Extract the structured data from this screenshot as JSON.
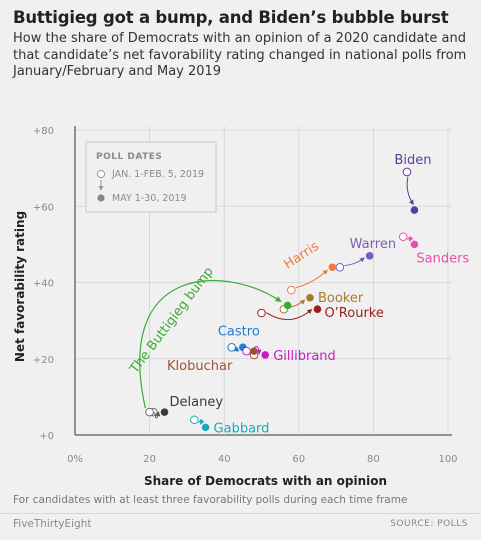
{
  "header": {
    "title": "Buttigieg got a bump, and Biden’s bubble burst",
    "subtitle": "How the share of Democrats with an opinion of a 2020 candidate and that candidate’s net favorability rating changed in national polls from January/February and May 2019"
  },
  "footer": {
    "note": "For candidates with at least three favorability polls during each time frame",
    "brand": "FiveThirtyEight",
    "source": "SOURCE: POLLS"
  },
  "chart_data": {
    "type": "scatter",
    "xlabel": "Share of Democrats with an opinion",
    "ylabel": "Net favorability rating",
    "xlim": [
      0,
      100
    ],
    "ylim": [
      0,
      80
    ],
    "x_ticks": [
      0,
      20,
      40,
      60,
      80,
      100
    ],
    "x_tick_labels": [
      "0%",
      "20",
      "40",
      "60",
      "80",
      "100"
    ],
    "y_ticks": [
      0,
      20,
      40,
      60,
      80
    ],
    "y_tick_labels": [
      "+0",
      "+20",
      "+40",
      "+60",
      "+80"
    ],
    "grid": true,
    "legend": {
      "title": "POLL DATES",
      "from_label": "JAN. 1-FEB. 5, 2019",
      "to_label": "MAY 1-30, 2019",
      "placement": "top-left"
    },
    "annotation": "The Buttigieg bump",
    "series": [
      {
        "name": "Biden",
        "color": "#5c3d9a",
        "from": [
          89,
          69
        ],
        "to": [
          91,
          59
        ]
      },
      {
        "name": "Sanders",
        "color": "#e84fb0",
        "from": [
          88,
          52
        ],
        "to": [
          91,
          50
        ]
      },
      {
        "name": "Warren",
        "color": "#7b5cb8",
        "from": [
          71,
          44
        ],
        "to": [
          79,
          47
        ]
      },
      {
        "name": "Harris",
        "color": "#f07a3a",
        "from": [
          58,
          38
        ],
        "to": [
          69,
          44
        ]
      },
      {
        "name": "Booker",
        "color": "#a87a30",
        "from": [
          56,
          33
        ],
        "to": [
          63,
          36
        ]
      },
      {
        "name": "O’Rourke",
        "color": "#9c1c1c",
        "from": [
          50,
          32
        ],
        "to": [
          65,
          33
        ]
      },
      {
        "name": "Buttigieg",
        "color": "#3aaa35",
        "from": [
          21,
          6
        ],
        "to": [
          57,
          34
        ]
      },
      {
        "name": "Castro",
        "color": "#1b7fd3",
        "from": [
          42,
          23
        ],
        "to": [
          45,
          23
        ]
      },
      {
        "name": "Gillibrand",
        "color": "#c21fc2",
        "from": [
          46,
          22
        ],
        "to": [
          51,
          21
        ]
      },
      {
        "name": "Klobuchar",
        "color": "#a0522d",
        "from": [
          48,
          21
        ],
        "to": [
          48,
          22
        ]
      },
      {
        "name": "Delaney",
        "color": "#3a3a3a",
        "from": [
          20,
          6
        ],
        "to": [
          24,
          6
        ]
      },
      {
        "name": "Gabbard",
        "color": "#1aa9b8",
        "from": [
          32,
          4
        ],
        "to": [
          35,
          2
        ]
      }
    ]
  }
}
